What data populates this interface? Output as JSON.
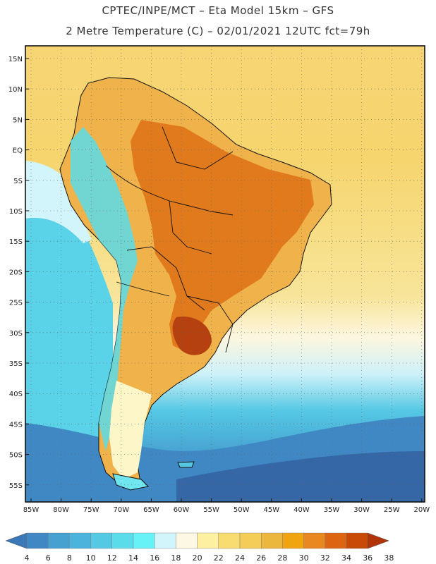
{
  "header": {
    "title_line1": "CPTEC/INPE/MCT –  Eta Model 15km – GFS",
    "title_line2": "2 Metre Temperature (C) – 02/01/2021 12UTC fct=79h"
  },
  "map": {
    "lat_labels": [
      "15N",
      "10N",
      "5N",
      "EQ",
      "5S",
      "10S",
      "15S",
      "20S",
      "25S",
      "30S",
      "35S",
      "40S",
      "45S",
      "50S",
      "55S"
    ],
    "lon_labels": [
      "85W",
      "80W",
      "75W",
      "70W",
      "65W",
      "60W",
      "55W",
      "50W",
      "45W",
      "40W",
      "35W",
      "30W",
      "25W",
      "20W"
    ]
  },
  "colorbar": {
    "labels": [
      "4",
      "6",
      "8",
      "10",
      "12",
      "14",
      "16",
      "18",
      "20",
      "22",
      "24",
      "26",
      "28",
      "30",
      "32",
      "34",
      "36",
      "38"
    ],
    "colors": [
      "#3a78b8",
      "#3f88c4",
      "#46a0d0",
      "#4cb4dc",
      "#55c8e4",
      "#5adcea",
      "#66f2f6",
      "#d2f4fb",
      "#fdf8e4",
      "#fdf0a0",
      "#f8dc72",
      "#f4cc58",
      "#ebb73d",
      "#f0a510",
      "#e98820",
      "#dd6410",
      "#c94a06",
      "#b03408"
    ]
  }
}
